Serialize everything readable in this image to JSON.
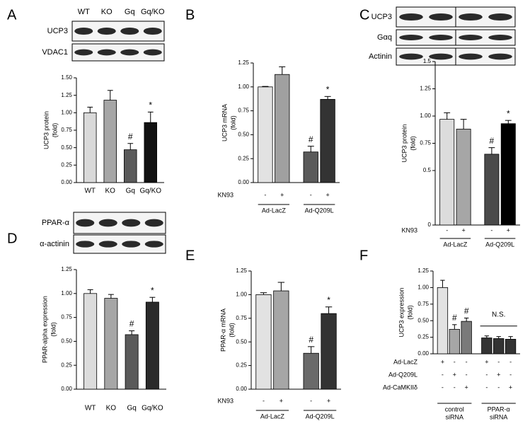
{
  "chart_data": [
    {
      "type": "bar",
      "panel": "A",
      "blots": [
        "UCP3",
        "VDAC1"
      ],
      "blot_header": true,
      "ylabel": [
        "UCP3 protein",
        "(fold)"
      ],
      "categories": [
        "WT",
        "KO",
        "Gq",
        "Gq/KO"
      ],
      "values": [
        1.0,
        1.18,
        0.47,
        0.86
      ],
      "errors": [
        0.08,
        0.14,
        0.09,
        0.15
      ],
      "significance": [
        null,
        null,
        "#",
        "*"
      ],
      "colors": [
        "#d9d9d9",
        "#a6a6a6",
        "#5a5a5a",
        "#111111"
      ],
      "ylim": [
        0,
        1.5
      ],
      "yticks": [
        {
          "value": 0,
          "label": "0.00"
        },
        0.25,
        {
          "value": 0.5,
          "label": "0.50"
        },
        0.75,
        {
          "value": 1,
          "label": "1.00"
        },
        1.25,
        {
          "value": 1.5,
          "label": "1.50"
        }
      ]
    },
    {
      "type": "bar",
      "panel": "B",
      "ylabel": [
        "UCP3 mRNA",
        "(fold)"
      ],
      "values": [
        1.0,
        1.13,
        0.32,
        0.87
      ],
      "errors": [
        0.005,
        0.08,
        0.06,
        0.03
      ],
      "significance": [
        null,
        null,
        "#",
        "*"
      ],
      "colors": [
        "#e2e2e2",
        "#a0a0a0",
        "#5a5a5a",
        "#333333"
      ],
      "treatments": [
        {
          "name": "KN93",
          "marks": [
            "-",
            "+",
            "-",
            "+"
          ]
        }
      ],
      "groups": [
        {
          "label": [
            "Ad-LacZ"
          ]
        },
        {
          "label": [
            "Ad-Q209L"
          ]
        }
      ],
      "ylim": [
        0,
        1.25
      ],
      "yticks": [
        {
          "value": 0,
          "label": "0.00"
        },
        0.25,
        {
          "value": 0.5,
          "label": "0.50"
        },
        0.75,
        {
          "value": 1,
          "label": "1.00"
        },
        1.25
      ]
    },
    {
      "type": "bar",
      "panel": "C",
      "blots": [
        "UCP3",
        "Gαq",
        "Actinin"
      ],
      "ylabel": [
        "UCP3 protein",
        "(fold)"
      ],
      "values": [
        0.97,
        0.88,
        0.65,
        0.93
      ],
      "errors": [
        0.06,
        0.09,
        0.06,
        0.03
      ],
      "significance": [
        null,
        null,
        "#",
        "*"
      ],
      "colors": [
        "#dcdcdc",
        "#a6a6a6",
        "#4a4a4a",
        "#000000"
      ],
      "treatments": [
        {
          "name": "KN93",
          "marks": [
            "-",
            "+",
            "-",
            "+"
          ]
        }
      ],
      "groups": [
        {
          "label": [
            "Ad-LacZ"
          ]
        },
        {
          "label": [
            "Ad-Q209L"
          ]
        }
      ],
      "ylim": [
        0,
        1.5
      ],
      "yticks": [
        0,
        0.5,
        0.75,
        {
          "value": 1,
          "label": "1.00"
        },
        1.25,
        1.5
      ]
    },
    {
      "type": "bar",
      "panel": "D",
      "blots": [
        "PPAR-α",
        "α-actinin"
      ],
      "ylabel": [
        "PPAR-alpha expression",
        "(fold)"
      ],
      "categories": [
        "WT",
        "KO",
        "Gq",
        "Gq/KO"
      ],
      "values": [
        1.0,
        0.95,
        0.57,
        0.91
      ],
      "errors": [
        0.04,
        0.04,
        0.04,
        0.05
      ],
      "significance": [
        null,
        null,
        "#",
        "*"
      ],
      "colors": [
        "#dcdcdc",
        "#a6a6a6",
        "#5a5a5a",
        "#2a2a2a"
      ],
      "ylim": [
        0,
        1.25
      ],
      "yticks": [
        {
          "value": 0,
          "label": "0.00"
        },
        0.25,
        {
          "value": 0.5,
          "label": "0.50"
        },
        0.75,
        {
          "value": 1,
          "label": "1.00"
        },
        1.25
      ]
    },
    {
      "type": "bar",
      "panel": "E",
      "ylabel": [
        "PPAR-α mRNA",
        "(fold)"
      ],
      "values": [
        1.0,
        1.04,
        0.38,
        0.8
      ],
      "errors": [
        0.02,
        0.09,
        0.07,
        0.07
      ],
      "significance": [
        null,
        null,
        "#",
        "*"
      ],
      "colors": [
        "#e2e2e2",
        "#a6a6a6",
        "#6a6a6a",
        "#333333"
      ],
      "treatments": [
        {
          "name": "KN93",
          "marks": [
            "-",
            "+",
            "-",
            "+"
          ]
        }
      ],
      "groups": [
        {
          "label": [
            "Ad-LacZ"
          ]
        },
        {
          "label": [
            "Ad-Q209L"
          ]
        }
      ],
      "ylim": [
        0,
        1.25
      ],
      "yticks": [
        {
          "value": 0,
          "label": "0.00"
        },
        0.25,
        {
          "value": 0.5,
          "label": "0.50"
        },
        0.75,
        {
          "value": 1,
          "label": "1.00"
        },
        1.25
      ]
    },
    {
      "type": "bar",
      "panel": "F",
      "ylabel": [
        "UCP3 expression",
        "(fold)"
      ],
      "values": [
        1.0,
        0.37,
        0.49,
        0.24,
        0.23,
        0.22
      ],
      "errors": [
        0.11,
        0.07,
        0.05,
        0.03,
        0.03,
        0.04
      ],
      "significance": [
        null,
        "#",
        "#",
        null,
        null,
        null
      ],
      "colors": [
        "#e2e2e2",
        "#a6a6a6",
        "#7a7a7a",
        "#333333",
        "#333333",
        "#333333"
      ],
      "treatments": [
        {
          "name": "Ad-LacZ",
          "marks": [
            "+",
            "-",
            "-",
            "+",
            "-",
            "-"
          ]
        },
        {
          "name": "Ad-Q209L",
          "marks": [
            "-",
            "+",
            "-",
            "-",
            "+",
            "-"
          ]
        },
        {
          "name": "Ad-CaMKIIδ",
          "marks": [
            "-",
            "-",
            "+",
            "-",
            "-",
            "+"
          ]
        }
      ],
      "groups": [
        {
          "label": [
            "control",
            "siRNA"
          ]
        },
        {
          "label": [
            "PPAR-α",
            "siRNA"
          ],
          "note": "N.S."
        }
      ],
      "ylim": [
        0,
        1.25
      ],
      "yticks": [
        {
          "value": 0,
          "label": "0.00"
        },
        0.25,
        {
          "value": 0.5,
          "label": "0.50"
        },
        0.75,
        {
          "value": 1,
          "label": "1.00"
        },
        1.25
      ]
    }
  ]
}
